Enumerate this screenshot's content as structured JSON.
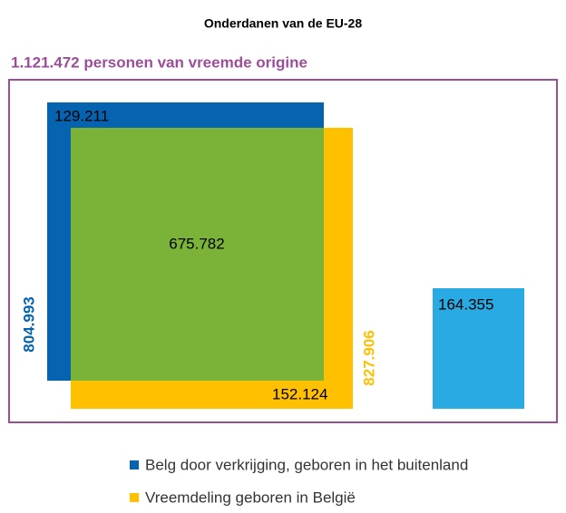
{
  "title": "Onderdanen van de EU-28",
  "subtitle": "1.121.472 personen van vreemde origine",
  "areas": {
    "blue_only": "129.211",
    "overlap": "675.782",
    "yellow_only": "152.124",
    "other": "164.355",
    "blue_total": "804.993",
    "yellow_total": "827.906"
  },
  "legend": [
    "Belg door verkrijging, geboren in het buitenland",
    "Vreemdeling geboren in België"
  ]
}
